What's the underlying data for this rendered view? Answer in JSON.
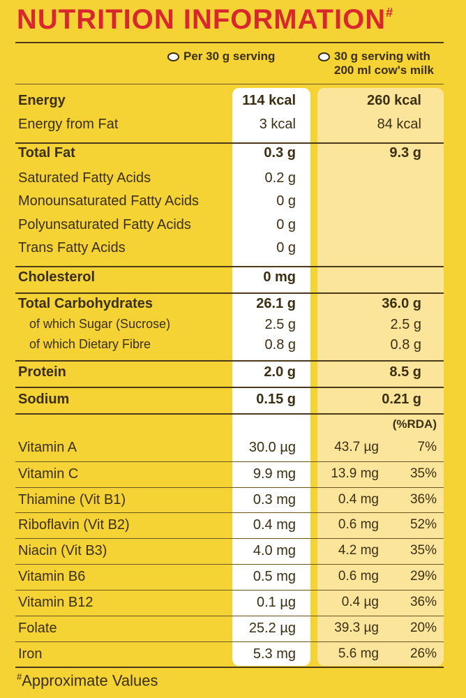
{
  "title": "NUTRITION INFORMATION",
  "title_mark": "#",
  "columns": {
    "col1_label": "Per 30 g serving",
    "col2_label_line1": "30 g serving with",
    "col2_label_line2": "200 ml cow's milk"
  },
  "macros": [
    {
      "label": "Energy",
      "v1": "114 kcal",
      "v2": "260 kcal",
      "bold": true
    },
    {
      "label": "Energy from Fat",
      "v1": "3 kcal",
      "v2": "84 kcal",
      "bold": false
    },
    {
      "label": "Total Fat",
      "v1": "0.3 g",
      "v2": "9.3 g",
      "bold": true
    },
    {
      "label": "Saturated Fatty Acids",
      "v1": "0.2 g",
      "v2": "",
      "bold": false
    },
    {
      "label": "Monounsaturated Fatty Acids",
      "v1": "0 g",
      "v2": "",
      "bold": false
    },
    {
      "label": "Polyunsaturated Fatty Acids",
      "v1": "0 g",
      "v2": "",
      "bold": false
    },
    {
      "label": "Trans Fatty Acids",
      "v1": "0 g",
      "v2": "",
      "bold": false
    },
    {
      "label": "Cholesterol",
      "v1": "0 mg",
      "v2": "",
      "bold": true
    },
    {
      "label": "Total Carbohydrates",
      "v1": "26.1 g",
      "v2": "36.0 g",
      "bold": true
    },
    {
      "label": "of which Sugar (Sucrose)",
      "v1": "2.5 g",
      "v2": "2.5 g",
      "bold": false
    },
    {
      "label": "of which Dietary Fibre",
      "v1": "0.8 g",
      "v2": "0.8 g",
      "bold": false
    },
    {
      "label": "Protein",
      "v1": "2.0 g",
      "v2": "8.5 g",
      "bold": true
    },
    {
      "label": "Sodium",
      "v1": "0.15 g",
      "v2": "0.21 g",
      "bold": true
    }
  ],
  "rda_header": "(%RDA)",
  "vitamins": [
    {
      "label": "Vitamin A",
      "v1": "30.0 µg",
      "v2": "43.7 µg",
      "rda": "7%"
    },
    {
      "label": "Vitamin C",
      "v1": "9.9 mg",
      "v2": "13.9 mg",
      "rda": "35%"
    },
    {
      "label": "Thiamine (Vit B1)",
      "v1": "0.3 mg",
      "v2": "0.4 mg",
      "rda": "36%"
    },
    {
      "label": "Riboflavin (Vit B2)",
      "v1": "0.4 mg",
      "v2": "0.6 mg",
      "rda": "52%"
    },
    {
      "label": "Niacin (Vit B3)",
      "v1": "4.0 mg",
      "v2": "4.2 mg",
      "rda": "35%"
    },
    {
      "label": "Vitamin B6",
      "v1": "0.5 mg",
      "v2": "0.6 mg",
      "rda": "29%"
    },
    {
      "label": "Vitamin B12",
      "v1": "0.1 µg",
      "v2": "0.4 µg",
      "rda": "36%"
    },
    {
      "label": "Folate",
      "v1": "25.2 µg",
      "v2": "39.3 µg",
      "rda": "20%"
    },
    {
      "label": "Iron",
      "v1": "5.3 mg",
      "v2": "5.6 mg",
      "rda": "26%"
    }
  ],
  "footnote_mark": "#",
  "footnote": "Approximate Values",
  "colors": {
    "background": "#f6d335",
    "title": "#d8282e",
    "col1_bg": "#ffffff",
    "col2_bg": "#fbe59a"
  }
}
